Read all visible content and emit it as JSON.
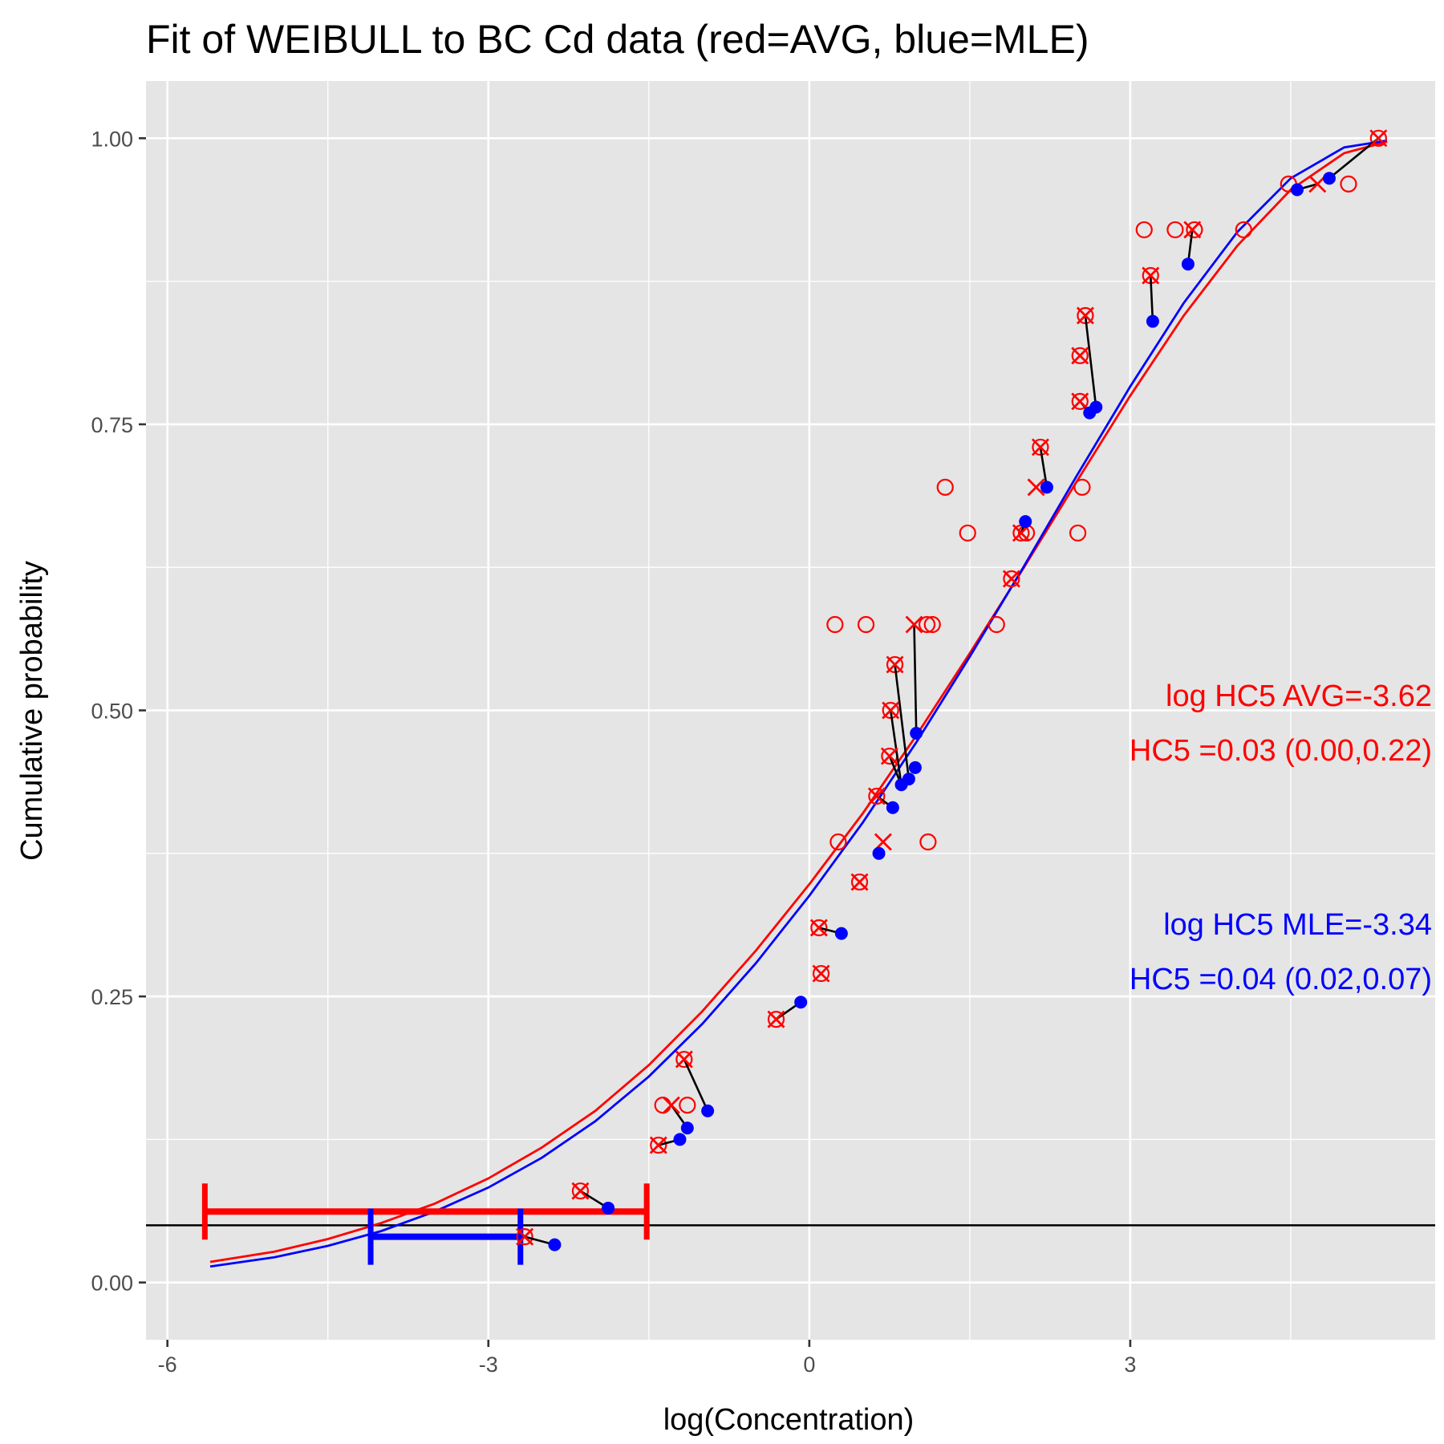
{
  "chart_data": {
    "type": "scatter",
    "title": "Fit of WEIBULL to BC Cd data (red=AVG, blue=MLE)",
    "xlabel": "log(Concentration)",
    "ylabel": "Cumulative probability",
    "xlim": [
      -6.2,
      5.85
    ],
    "ylim": [
      -0.05,
      1.05
    ],
    "grid": true,
    "x_ticks": [
      -6,
      -3,
      0,
      3
    ],
    "x_tick_labels": [
      "-6",
      "-3",
      "0",
      "3"
    ],
    "y_ticks": [
      0,
      0.25,
      0.5,
      0.75,
      1
    ],
    "y_tick_labels": [
      "0.00",
      "0.25",
      "0.50",
      "0.75",
      "1.00"
    ],
    "colors": {
      "avg": "#ff0000",
      "mle": "#0000ff",
      "link": "#000000",
      "panel": "#e5e5e5",
      "grid": "#ffffff"
    },
    "hline_y": 0.05,
    "curves": [
      {
        "name": "AVG",
        "color": "#ff0000",
        "x": [
          -5.6,
          -5.0,
          -4.5,
          -4.0,
          -3.5,
          -3.0,
          -2.5,
          -2.0,
          -1.5,
          -1.0,
          -0.5,
          0.0,
          0.5,
          1.0,
          1.5,
          2.0,
          2.5,
          3.0,
          3.5,
          4.0,
          4.5,
          5.0,
          5.4
        ],
        "y": [
          0.018,
          0.027,
          0.038,
          0.052,
          0.069,
          0.091,
          0.118,
          0.15,
          0.19,
          0.237,
          0.29,
          0.348,
          0.41,
          0.478,
          0.55,
          0.624,
          0.7,
          0.775,
          0.845,
          0.906,
          0.955,
          0.987,
          0.997
        ]
      },
      {
        "name": "MLE",
        "color": "#0000ff",
        "x": [
          -5.6,
          -5.0,
          -4.5,
          -4.0,
          -3.5,
          -3.0,
          -2.5,
          -2.0,
          -1.5,
          -1.0,
          -0.5,
          0.0,
          0.5,
          1.0,
          1.5,
          2.0,
          2.5,
          3.0,
          3.5,
          4.0,
          4.5,
          5.0,
          5.4
        ],
        "y": [
          0.014,
          0.022,
          0.032,
          0.045,
          0.062,
          0.083,
          0.109,
          0.141,
          0.18,
          0.226,
          0.279,
          0.338,
          0.402,
          0.472,
          0.547,
          0.625,
          0.705,
          0.783,
          0.856,
          0.918,
          0.965,
          0.992,
          0.998
        ]
      }
    ],
    "intervals": [
      {
        "name": "AVG",
        "color": "#ff0000",
        "x_low": -5.65,
        "x_high": -1.52,
        "y": 0.062
      },
      {
        "name": "MLE",
        "color": "#0000ff",
        "x_low": -4.1,
        "x_high": -2.7,
        "y": 0.04
      }
    ],
    "circles": [
      [
        -2.66,
        0.04
      ],
      [
        -2.14,
        0.08
      ],
      [
        -1.41,
        0.12
      ],
      [
        -1.37,
        0.155
      ],
      [
        -1.17,
        0.195
      ],
      [
        -1.14,
        0.155
      ],
      [
        -0.31,
        0.23
      ],
      [
        0.11,
        0.27
      ],
      [
        0.09,
        0.31
      ],
      [
        0.47,
        0.35
      ],
      [
        0.27,
        0.385
      ],
      [
        0.63,
        0.425
      ],
      [
        1.11,
        0.385
      ],
      [
        0.75,
        0.46
      ],
      [
        0.76,
        0.5
      ],
      [
        0.8,
        0.54
      ],
      [
        0.24,
        0.575
      ],
      [
        0.53,
        0.575
      ],
      [
        1.1,
        0.575
      ],
      [
        1.15,
        0.575
      ],
      [
        1.75,
        0.575
      ],
      [
        1.89,
        0.615
      ],
      [
        1.98,
        0.655
      ],
      [
        1.48,
        0.655
      ],
      [
        2.03,
        0.655
      ],
      [
        2.51,
        0.655
      ],
      [
        1.27,
        0.695
      ],
      [
        2.55,
        0.695
      ],
      [
        2.16,
        0.73
      ],
      [
        2.53,
        0.77
      ],
      [
        2.53,
        0.81
      ],
      [
        2.58,
        0.845
      ],
      [
        3.19,
        0.88
      ],
      [
        3.13,
        0.92
      ],
      [
        3.42,
        0.92
      ],
      [
        3.6,
        0.92
      ],
      [
        4.06,
        0.92
      ],
      [
        4.48,
        0.96
      ],
      [
        5.04,
        0.96
      ],
      [
        5.32,
        1.0
      ]
    ],
    "crosses": [
      [
        -2.66,
        0.04
      ],
      [
        -2.14,
        0.08
      ],
      [
        -1.41,
        0.12
      ],
      [
        -1.29,
        0.155
      ],
      [
        -1.17,
        0.195
      ],
      [
        -0.31,
        0.23
      ],
      [
        0.11,
        0.27
      ],
      [
        0.09,
        0.31
      ],
      [
        0.47,
        0.35
      ],
      [
        0.69,
        0.385
      ],
      [
        0.63,
        0.425
      ],
      [
        0.75,
        0.46
      ],
      [
        0.76,
        0.5
      ],
      [
        0.8,
        0.54
      ],
      [
        0.98,
        0.575
      ],
      [
        1.89,
        0.615
      ],
      [
        1.98,
        0.655
      ],
      [
        2.12,
        0.695
      ],
      [
        2.16,
        0.73
      ],
      [
        2.53,
        0.77
      ],
      [
        2.53,
        0.81
      ],
      [
        2.58,
        0.845
      ],
      [
        3.19,
        0.88
      ],
      [
        3.58,
        0.92
      ],
      [
        4.75,
        0.96
      ],
      [
        5.32,
        1.0
      ]
    ],
    "mle_points": [
      [
        -2.38,
        0.033
      ],
      [
        -1.88,
        0.065
      ],
      [
        -1.21,
        0.125
      ],
      [
        -1.14,
        0.135
      ],
      [
        -0.95,
        0.15
      ],
      [
        -0.08,
        0.245
      ],
      [
        0.3,
        0.305
      ],
      [
        0.65,
        0.375
      ],
      [
        0.78,
        0.415
      ],
      [
        0.86,
        0.435
      ],
      [
        0.93,
        0.44
      ],
      [
        0.99,
        0.45
      ],
      [
        1.0,
        0.48
      ],
      [
        2.02,
        0.665
      ],
      [
        2.22,
        0.695
      ],
      [
        2.62,
        0.76
      ],
      [
        2.68,
        0.765
      ],
      [
        3.21,
        0.84
      ],
      [
        3.54,
        0.89
      ],
      [
        4.56,
        0.955
      ],
      [
        4.86,
        0.965
      ]
    ],
    "links": [
      [
        [
          -2.66,
          0.04
        ],
        [
          -2.38,
          0.033
        ]
      ],
      [
        [
          -2.14,
          0.08
        ],
        [
          -1.88,
          0.065
        ]
      ],
      [
        [
          -1.41,
          0.12
        ],
        [
          -1.21,
          0.125
        ]
      ],
      [
        [
          -1.29,
          0.155
        ],
        [
          -1.14,
          0.135
        ]
      ],
      [
        [
          -1.17,
          0.195
        ],
        [
          -0.95,
          0.15
        ]
      ],
      [
        [
          -0.31,
          0.23
        ],
        [
          -0.08,
          0.245
        ]
      ],
      [
        [
          0.09,
          0.31
        ],
        [
          0.3,
          0.305
        ]
      ],
      [
        [
          0.63,
          0.425
        ],
        [
          0.78,
          0.415
        ]
      ],
      [
        [
          0.8,
          0.54
        ],
        [
          0.93,
          0.44
        ]
      ],
      [
        [
          0.75,
          0.46
        ],
        [
          0.86,
          0.435
        ]
      ],
      [
        [
          0.76,
          0.5
        ],
        [
          0.86,
          0.435
        ]
      ],
      [
        [
          0.98,
          0.575
        ],
        [
          1.0,
          0.48
        ]
      ],
      [
        [
          1.98,
          0.655
        ],
        [
          2.02,
          0.665
        ]
      ],
      [
        [
          2.16,
          0.73
        ],
        [
          2.22,
          0.695
        ]
      ],
      [
        [
          2.53,
          0.77
        ],
        [
          2.62,
          0.76
        ]
      ],
      [
        [
          2.58,
          0.845
        ],
        [
          2.68,
          0.765
        ]
      ],
      [
        [
          3.19,
          0.88
        ],
        [
          3.21,
          0.84
        ]
      ],
      [
        [
          3.58,
          0.92
        ],
        [
          3.54,
          0.89
        ]
      ],
      [
        [
          4.75,
          0.96
        ],
        [
          4.56,
          0.955
        ]
      ],
      [
        [
          5.32,
          1.0
        ],
        [
          4.86,
          0.965
        ]
      ]
    ],
    "annotations": {
      "avg_line1": "log HC5 AVG=-3.62",
      "avg_line2": "HC5 =0.03  (0.00,0.22)",
      "mle_line1": "log HC5 MLE=-3.34",
      "mle_line2": "HC5 =0.04  (0.02,0.07)"
    }
  }
}
